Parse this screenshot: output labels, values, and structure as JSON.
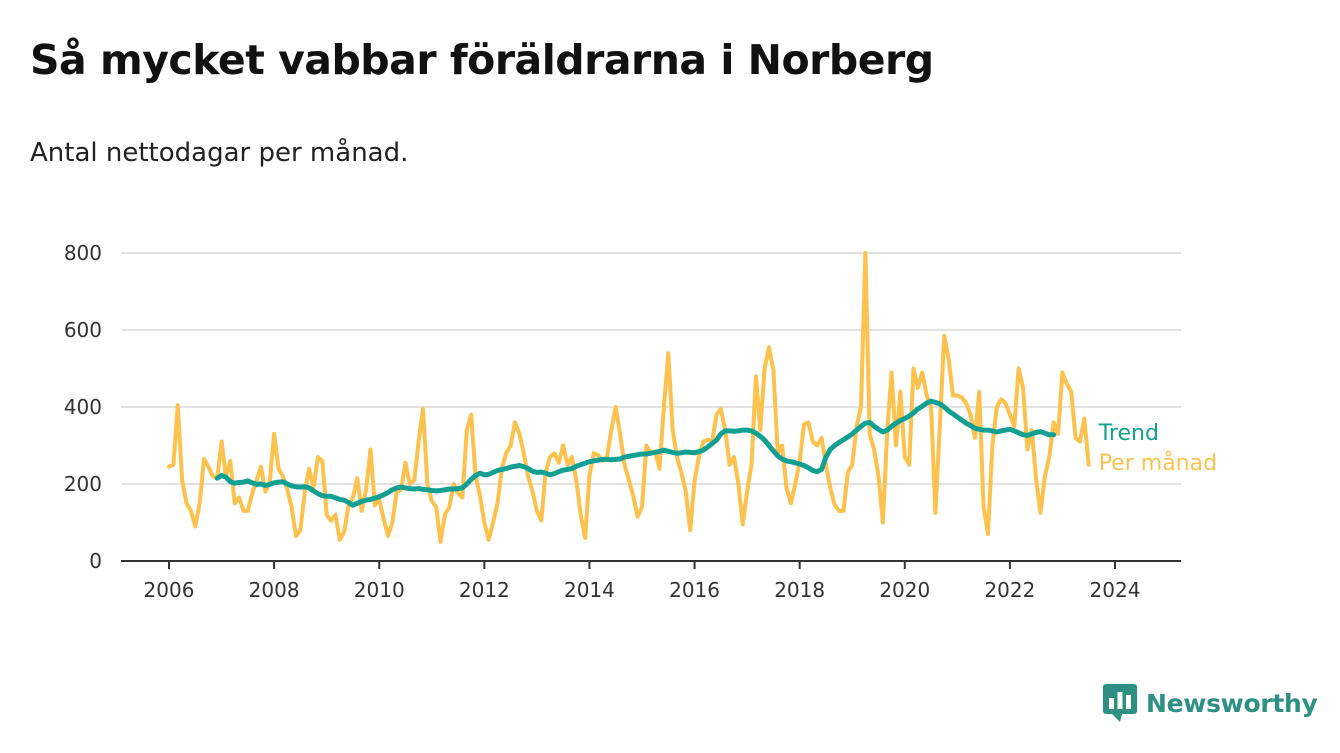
{
  "title": "Så mycket vabbar föräldrarna i Norberg",
  "subtitle": "Antal nettodagar per månad.",
  "brand": {
    "name": "Newsworthy",
    "icon": "bar-chart-speech-bubble-icon",
    "color": "#2e8f83"
  },
  "chart_data": {
    "type": "line",
    "ylim": [
      0,
      800
    ],
    "yticks": [
      0,
      200,
      400,
      600,
      800
    ],
    "xlim": [
      "2006-01",
      "2024-05"
    ],
    "xticks": [
      "2006",
      "2008",
      "2010",
      "2012",
      "2014",
      "2016",
      "2018",
      "2020",
      "2022",
      "2024"
    ],
    "grid": true,
    "legend": "inline-right",
    "series": [
      {
        "name": "Per månad",
        "color": "#fcc24d",
        "start": "2006-01",
        "values": [
          245,
          250,
          405,
          210,
          150,
          130,
          90,
          150,
          265,
          245,
          220,
          215,
          310,
          220,
          260,
          150,
          165,
          130,
          130,
          175,
          210,
          245,
          180,
          205,
          330,
          240,
          220,
          185,
          140,
          65,
          80,
          180,
          240,
          190,
          270,
          260,
          120,
          105,
          120,
          55,
          75,
          145,
          165,
          215,
          130,
          185,
          290,
          145,
          160,
          110,
          65,
          100,
          180,
          185,
          255,
          200,
          210,
          310,
          395,
          200,
          155,
          140,
          50,
          120,
          140,
          200,
          175,
          165,
          340,
          380,
          220,
          170,
          100,
          55,
          100,
          150,
          240,
          280,
          300,
          360,
          330,
          280,
          220,
          180,
          130,
          105,
          230,
          270,
          280,
          255,
          300,
          250,
          270,
          210,
          120,
          60,
          220,
          280,
          275,
          260,
          270,
          340,
          400,
          330,
          250,
          210,
          170,
          115,
          140,
          300,
          280,
          285,
          240,
          400,
          540,
          340,
          270,
          230,
          180,
          80,
          210,
          270,
          310,
          315,
          310,
          380,
          395,
          340,
          250,
          270,
          200,
          95,
          180,
          250,
          480,
          340,
          500,
          555,
          495,
          280,
          300,
          190,
          150,
          200,
          260,
          355,
          360,
          310,
          300,
          320,
          250,
          190,
          145,
          130,
          130,
          230,
          250,
          350,
          400,
          800,
          330,
          290,
          220,
          100,
          340,
          490,
          300,
          440,
          270,
          250,
          500,
          450,
          490,
          430,
          400,
          125,
          350,
          585,
          525,
          430,
          430,
          425,
          410,
          380,
          320,
          440,
          140,
          70,
          300,
          400,
          420,
          410,
          380,
          350,
          500,
          450,
          290,
          340,
          210,
          125,
          220,
          270,
          360,
          330,
          490,
          460,
          440,
          320,
          310,
          370,
          250
        ]
      },
      {
        "name": "Trend",
        "color": "#13a093",
        "start": "2006-12",
        "values": [
          215,
          222,
          218,
          206,
          202,
          204,
          205,
          208,
          203,
          199,
          200,
          196,
          199,
          203,
          205,
          206,
          200,
          195,
          193,
          192,
          193,
          190,
          182,
          175,
          170,
          168,
          168,
          164,
          160,
          158,
          152,
          145,
          150,
          155,
          158,
          160,
          163,
          167,
          172,
          178,
          185,
          190,
          192,
          190,
          188,
          187,
          188,
          186,
          185,
          183,
          182,
          183,
          185,
          187,
          187,
          188,
          190,
          200,
          212,
          222,
          228,
          224,
          225,
          230,
          235,
          238,
          240,
          244,
          246,
          248,
          245,
          240,
          233,
          230,
          231,
          228,
          224,
          227,
          232,
          236,
          238,
          240,
          246,
          250,
          254,
          258,
          260,
          262,
          264,
          264,
          263,
          264,
          265,
          270,
          272,
          274,
          276,
          278,
          278,
          280,
          282,
          285,
          288,
          285,
          282,
          280,
          281,
          283,
          282,
          281,
          284,
          288,
          296,
          305,
          314,
          330,
          338,
          338,
          337,
          338,
          340,
          340,
          338,
          332,
          324,
          314,
          300,
          286,
          273,
          265,
          260,
          258,
          255,
          252,
          248,
          242,
          235,
          232,
          238,
          270,
          290,
          300,
          308,
          315,
          322,
          330,
          340,
          350,
          358,
          360,
          350,
          342,
          335,
          340,
          350,
          358,
          365,
          370,
          376,
          385,
          395,
          402,
          410,
          415,
          412,
          408,
          400,
          390,
          382,
          374,
          366,
          358,
          352,
          345,
          342,
          340,
          340,
          338,
          335,
          338,
          340,
          342,
          338,
          333,
          328,
          326,
          330,
          334,
          336,
          332,
          328,
          328
        ]
      }
    ]
  }
}
